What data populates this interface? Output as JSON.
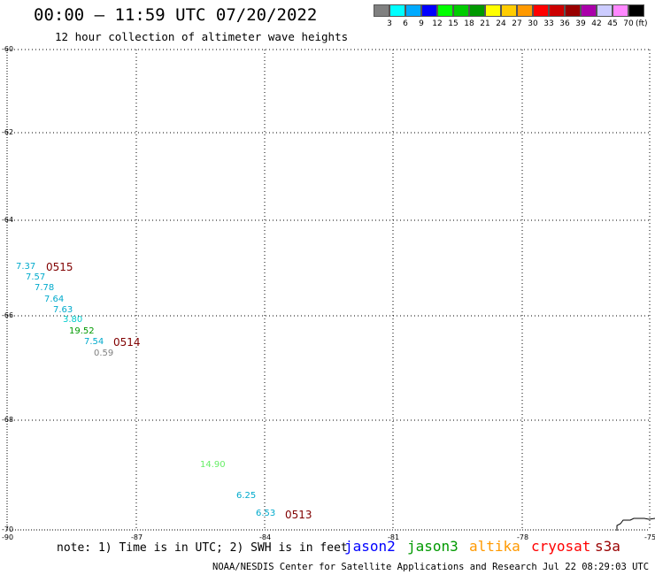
{
  "header": {
    "title": "00:00 – 11:59 UTC 07/20/2022",
    "subtitle": "12 hour collection of altimeter wave heights"
  },
  "legend": {
    "colors": [
      "#808080",
      "#00ffff",
      "#00aaff",
      "#0000ff",
      "#00ff00",
      "#00cc00",
      "#009900",
      "#ffff00",
      "#ffcc00",
      "#ff9900",
      "#ff0000",
      "#cc0000",
      "#990000",
      "#aa00aa",
      "#ccccff",
      "#ff88ff",
      "#000000"
    ],
    "labels": [
      "3",
      "6",
      "9",
      "12",
      "15",
      "18",
      "21",
      "24",
      "27",
      "30",
      "33",
      "36",
      "39",
      "42",
      "45",
      "70"
    ],
    "unit": "(ft)"
  },
  "map": {
    "lat_ticks": [
      "-60",
      "-62",
      "-64",
      "-66",
      "-68",
      "-70"
    ],
    "lon_ticks": [
      "-90",
      "-87",
      "-84",
      "-81",
      "-78",
      "-75"
    ],
    "observations": [
      {
        "value": "7.37",
        "color": "#00aacc"
      },
      {
        "value": "7.57",
        "color": "#00aacc"
      },
      {
        "value": "7.78",
        "color": "#00aacc"
      },
      {
        "value": "7.64",
        "color": "#00aacc"
      },
      {
        "value": "7.63",
        "color": "#00aacc"
      },
      {
        "value": "3.80",
        "color": "#00cccc"
      },
      {
        "value": "19.52",
        "color": "#009900"
      },
      {
        "value": "7.54",
        "color": "#00aacc"
      },
      {
        "value": "0.59",
        "color": "#808080"
      },
      {
        "value": "14.90",
        "color": "#66ee66"
      },
      {
        "value": "6.25",
        "color": "#00aacc"
      },
      {
        "value": "6.53",
        "color": "#00aacc"
      }
    ],
    "passes": [
      "0515",
      "0514",
      "0513"
    ]
  },
  "footer": {
    "note": "note: 1) Time is in UTC; 2) SWH is in feet",
    "missions": [
      {
        "name": "jason2",
        "color": "#0000ff"
      },
      {
        "name": "jason3",
        "color": "#009900"
      },
      {
        "name": "altika",
        "color": "#ff9900"
      },
      {
        "name": "cryosat",
        "color": "#ff0000"
      },
      {
        "name": "s3a",
        "color": "#990000"
      }
    ],
    "credits": "NOAA/NESDIS Center for Satellite Applications and Research   Jul 22 08:29:03 UTC 2022"
  }
}
